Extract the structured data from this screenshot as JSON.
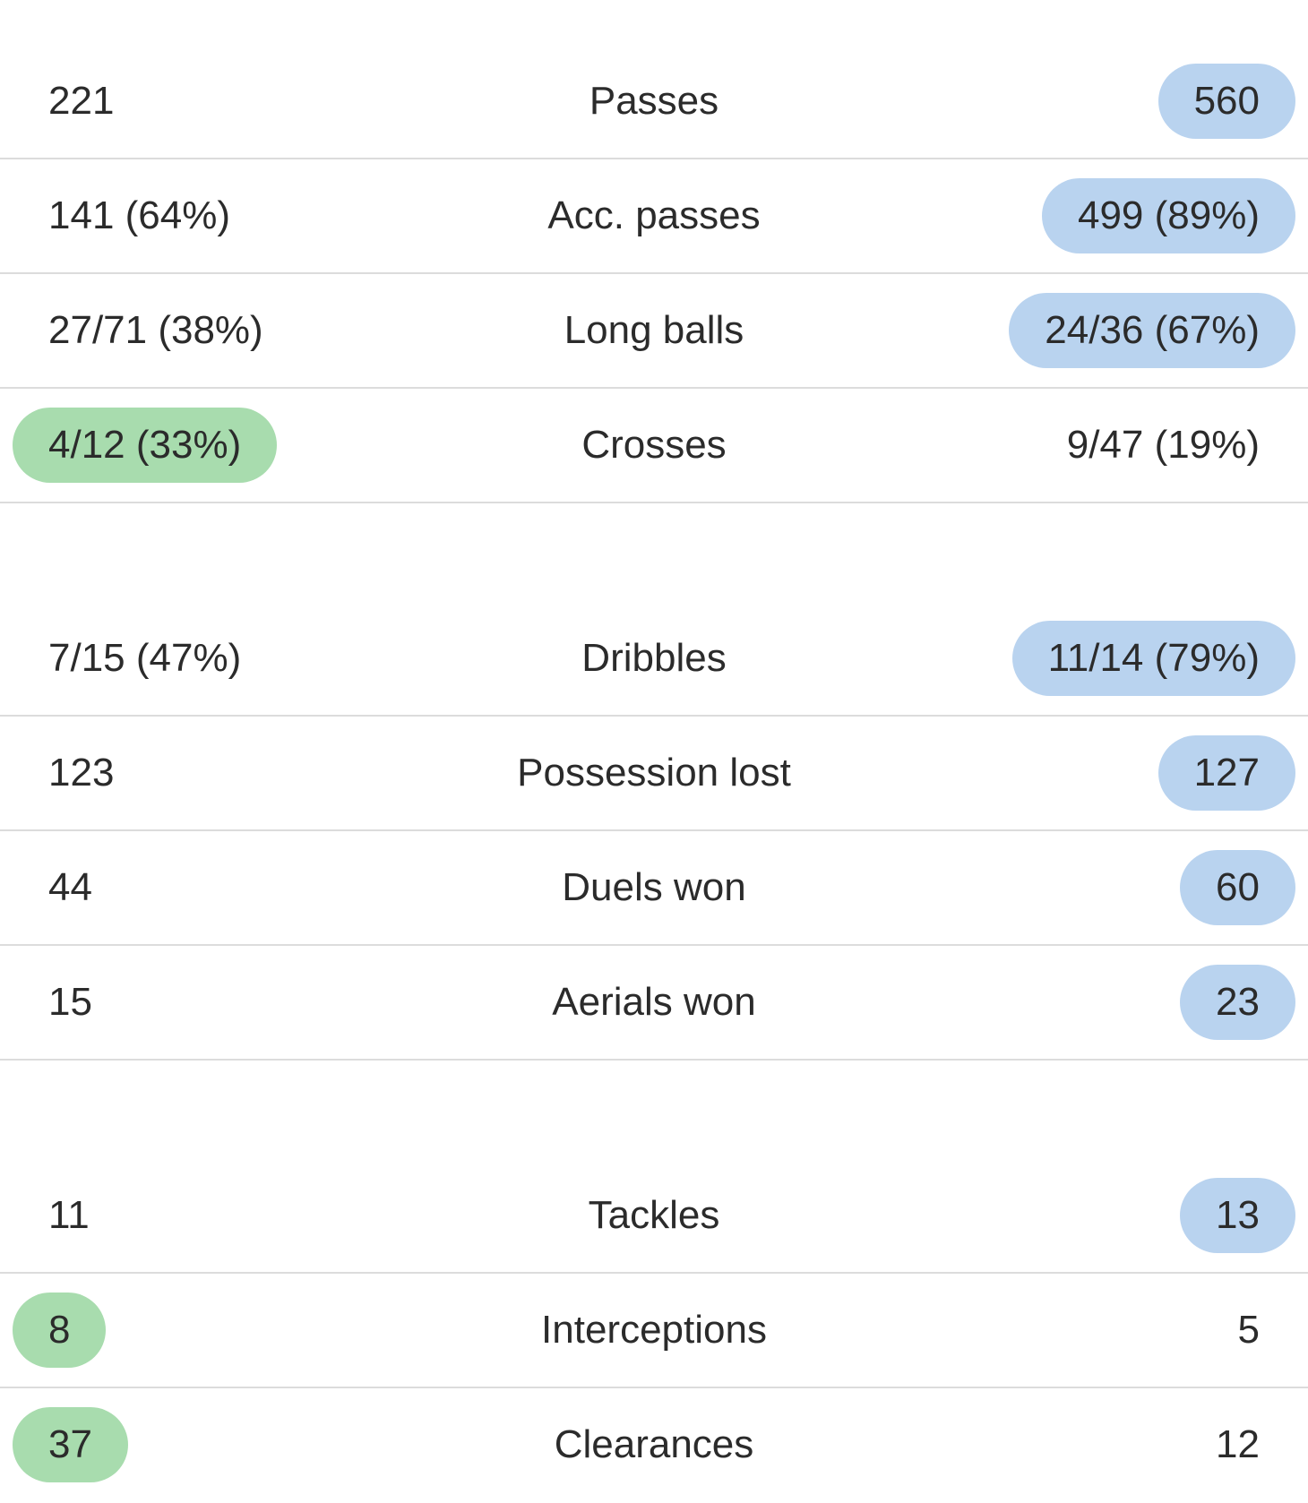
{
  "highlight_colors": {
    "home": "#a8dcae",
    "away": "#b9d3ef"
  },
  "groups": [
    {
      "rows": [
        {
          "label": "Passes",
          "home": "221",
          "away": "560",
          "winner": "away"
        },
        {
          "label": "Acc. passes",
          "home": "141 (64%)",
          "away": "499 (89%)",
          "winner": "away"
        },
        {
          "label": "Long balls",
          "home": "27/71 (38%)",
          "away": "24/36 (67%)",
          "winner": "away"
        },
        {
          "label": "Crosses",
          "home": "4/12 (33%)",
          "away": "9/47 (19%)",
          "winner": "home"
        }
      ]
    },
    {
      "rows": [
        {
          "label": "Dribbles",
          "home": "7/15 (47%)",
          "away": "11/14 (79%)",
          "winner": "away"
        },
        {
          "label": "Possession lost",
          "home": "123",
          "away": "127",
          "winner": "away"
        },
        {
          "label": "Duels won",
          "home": "44",
          "away": "60",
          "winner": "away"
        },
        {
          "label": "Aerials won",
          "home": "15",
          "away": "23",
          "winner": "away"
        }
      ]
    },
    {
      "rows": [
        {
          "label": "Tackles",
          "home": "11",
          "away": "13",
          "winner": "away"
        },
        {
          "label": "Interceptions",
          "home": "8",
          "away": "5",
          "winner": "home"
        },
        {
          "label": "Clearances",
          "home": "37",
          "away": "12",
          "winner": "home"
        }
      ]
    }
  ]
}
